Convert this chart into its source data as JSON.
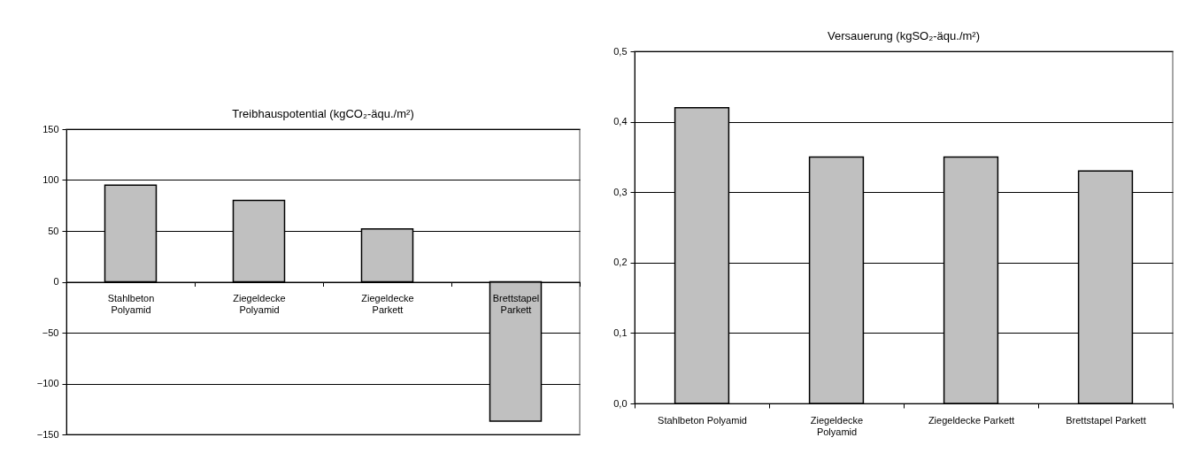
{
  "chart_data": [
    {
      "type": "bar",
      "title": "Treibhauspotential  (kgCO₂-äqu./m²)",
      "categories": [
        "Stahlbeton\nPolyamid",
        "Ziegeldecke\nPolyamid",
        "Ziegeldecke\nParkett",
        "Brettstapel\nParkett"
      ],
      "values": [
        95,
        80,
        52,
        -137
      ],
      "color": "#c0c0c0",
      "ylim": [
        -150,
        150
      ],
      "yticks": [
        -150,
        -100,
        -50,
        0,
        50,
        100,
        150
      ],
      "grid": "y"
    },
    {
      "type": "bar",
      "title": "Versauerung  (kgSO₂-äqu./m²)",
      "categories": [
        "Stahlbeton  Polyamid",
        "Ziegeldecke\nPolyamid",
        "Ziegeldecke  Parkett",
        "Brettstapel   Parkett"
      ],
      "values": [
        0.42,
        0.35,
        0.35,
        0.33
      ],
      "color": "#c0c0c0",
      "ylim": [
        0,
        0.5
      ],
      "yticks": [
        {
          "value": 0,
          "label": "0,0"
        },
        {
          "value": 0.1,
          "label": "0,1"
        },
        {
          "value": 0.2,
          "label": "0,2"
        },
        {
          "value": 0.3,
          "label": "0,3"
        },
        {
          "value": 0.4,
          "label": "0,4"
        },
        {
          "value": 0.5,
          "label": "0,5"
        }
      ],
      "grid": "y"
    }
  ]
}
